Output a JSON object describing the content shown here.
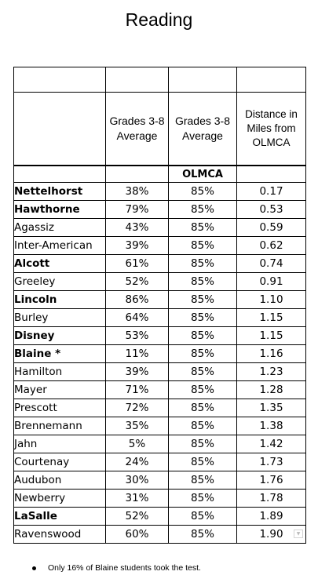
{
  "title": "Reading",
  "table": {
    "headers": {
      "col2": "Grades 3-8 Average",
      "col3": "Grades 3-8 Average",
      "col4": "Distance in Miles from OLMCA"
    },
    "label_row": "OLMCA",
    "rows": [
      {
        "school": "Nettelhorst",
        "bold": true,
        "avg": "38%",
        "olmca": "85%",
        "distance": "0.17"
      },
      {
        "school": "Hawthorne",
        "bold": true,
        "avg": "79%",
        "olmca": "85%",
        "distance": "0.53"
      },
      {
        "school": "Agassiz",
        "bold": false,
        "avg": "43%",
        "olmca": "85%",
        "distance": "0.59"
      },
      {
        "school": "Inter-American",
        "bold": false,
        "avg": "39%",
        "olmca": "85%",
        "distance": "0.62"
      },
      {
        "school": "Alcott",
        "bold": true,
        "avg": "61%",
        "olmca": "85%",
        "distance": "0.74"
      },
      {
        "school": "Greeley",
        "bold": false,
        "avg": "52%",
        "olmca": "85%",
        "distance": "0.91"
      },
      {
        "school": "Lincoln",
        "bold": true,
        "avg": "86%",
        "olmca": "85%",
        "distance": "1.10"
      },
      {
        "school": "Burley",
        "bold": false,
        "avg": "64%",
        "olmca": "85%",
        "distance": "1.15"
      },
      {
        "school": "Disney",
        "bold": true,
        "avg": "53%",
        "olmca": "85%",
        "distance": "1.15"
      },
      {
        "school": "Blaine *",
        "bold": true,
        "avg": "11%",
        "olmca": "85%",
        "distance": "1.16"
      },
      {
        "school": "Hamilton",
        "bold": false,
        "avg": "39%",
        "olmca": "85%",
        "distance": "1.23"
      },
      {
        "school": "Mayer",
        "bold": false,
        "avg": "71%",
        "olmca": "85%",
        "distance": "1.28"
      },
      {
        "school": "Prescott",
        "bold": false,
        "avg": "72%",
        "olmca": "85%",
        "distance": "1.35"
      },
      {
        "school": "Brennemann",
        "bold": false,
        "avg": "35%",
        "olmca": "85%",
        "distance": "1.38"
      },
      {
        "school": "Jahn",
        "bold": false,
        "avg": "5%",
        "olmca": "85%",
        "distance": "1.42"
      },
      {
        "school": "Courtenay",
        "bold": false,
        "avg": "24%",
        "olmca": "85%",
        "distance": "1.73"
      },
      {
        "school": "Audubon",
        "bold": false,
        "avg": "30%",
        "olmca": "85%",
        "distance": "1.76"
      },
      {
        "school": "Newberry",
        "bold": false,
        "avg": "31%",
        "olmca": "85%",
        "distance": "1.78"
      },
      {
        "school": "LaSalle",
        "bold": true,
        "avg": "52%",
        "olmca": "85%",
        "distance": "1.89"
      },
      {
        "school": "Ravenswood",
        "bold": false,
        "avg": "60%",
        "olmca": "85%",
        "distance": "1.90"
      }
    ]
  },
  "footnote": "Only 16% of Blaine students took the test."
}
